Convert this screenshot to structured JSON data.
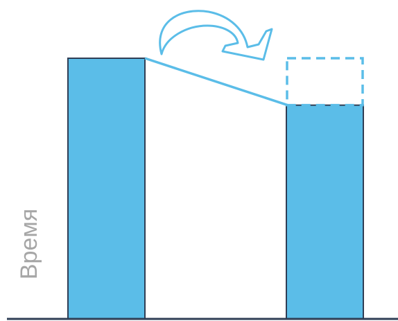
{
  "chart_data": {
    "type": "bar",
    "categories": [
      "",
      ""
    ],
    "values": [
      1.0,
      0.82
    ],
    "ghost_value": 1.0,
    "ylabel": "Время",
    "xlabel": "",
    "title": "",
    "ylim": [
      0,
      1.0
    ],
    "grid": false,
    "legend": "none",
    "colors": {
      "bar_fill": "#5bbde8",
      "bar_stroke": "#2f3e55",
      "accent": "#5bbde8",
      "axis": "#2f3e55",
      "label": "#a6a6a6"
    }
  }
}
